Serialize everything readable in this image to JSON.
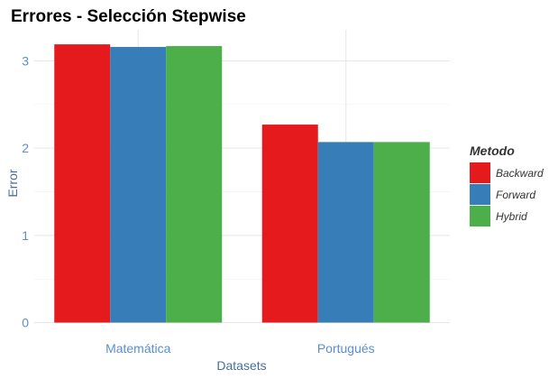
{
  "chart_data": {
    "type": "bar",
    "title": "Errores - Selección Stepwise",
    "xlabel": "Datasets",
    "ylabel": "Error",
    "categories": [
      "Matemática",
      "Portugués"
    ],
    "series": [
      {
        "name": "Backward",
        "color": "#e41a1c",
        "values": [
          3.19,
          2.27
        ]
      },
      {
        "name": "Forward",
        "color": "#377eb8",
        "values": [
          3.16,
          2.07
        ]
      },
      {
        "name": "Hybrid",
        "color": "#4daf4a",
        "values": [
          3.17,
          2.07
        ]
      }
    ],
    "ylim": [
      0,
      3.3
    ],
    "yticks": [
      0,
      1,
      2,
      3
    ],
    "grid": true,
    "legend": {
      "title": "Metodo",
      "position": "right"
    }
  }
}
